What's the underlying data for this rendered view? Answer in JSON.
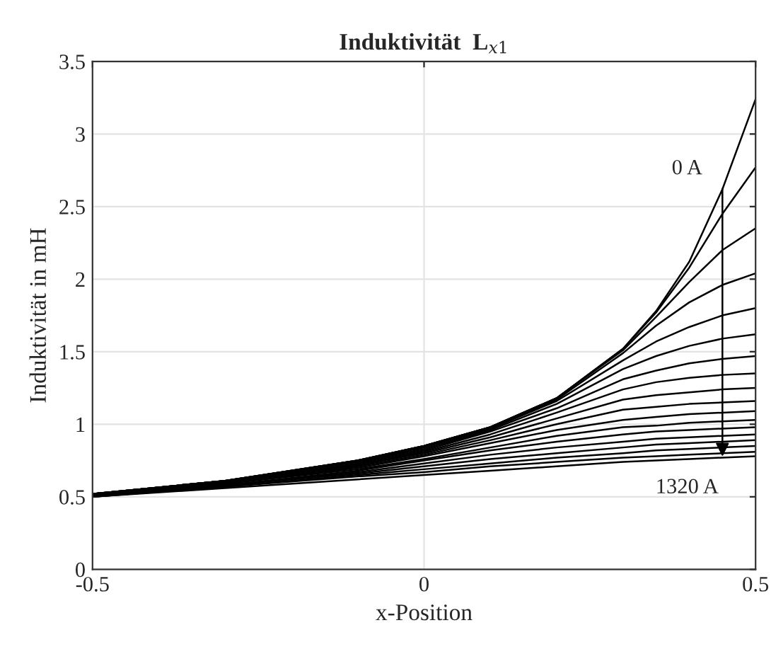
{
  "chart_data": {
    "type": "line",
    "title": "Induktivität  L$_{x1}$",
    "xlabel": "x-Position",
    "ylabel": "Induktivität in mH",
    "x": [
      -0.5,
      -0.3,
      -0.1,
      0,
      0.1,
      0.2,
      0.3,
      0.35,
      0.4,
      0.45,
      0.5
    ],
    "series": [
      {
        "color": "#000000",
        "values": [
          0.52,
          0.61,
          0.75,
          0.85,
          0.98,
          1.18,
          1.52,
          1.78,
          2.12,
          2.62,
          3.24
        ]
      },
      {
        "color": "#000000",
        "values": [
          0.52,
          0.61,
          0.75,
          0.85,
          0.98,
          1.18,
          1.52,
          1.77,
          2.08,
          2.45,
          2.77
        ]
      },
      {
        "color": "#000000",
        "values": [
          0.52,
          0.61,
          0.75,
          0.85,
          0.98,
          1.18,
          1.51,
          1.74,
          1.98,
          2.2,
          2.35
        ]
      },
      {
        "color": "#000000",
        "values": [
          0.52,
          0.61,
          0.75,
          0.85,
          0.98,
          1.17,
          1.49,
          1.68,
          1.84,
          1.96,
          2.04
        ]
      },
      {
        "color": "#000000",
        "values": [
          0.52,
          0.61,
          0.74,
          0.84,
          0.97,
          1.16,
          1.44,
          1.57,
          1.67,
          1.75,
          1.8
        ]
      },
      {
        "color": "#000000",
        "values": [
          0.52,
          0.61,
          0.74,
          0.83,
          0.96,
          1.14,
          1.38,
          1.47,
          1.54,
          1.59,
          1.62
        ]
      },
      {
        "color": "#000000",
        "values": [
          0.52,
          0.6,
          0.73,
          0.82,
          0.95,
          1.11,
          1.31,
          1.37,
          1.42,
          1.45,
          1.47
        ]
      },
      {
        "color": "#000000",
        "values": [
          0.52,
          0.6,
          0.72,
          0.81,
          0.93,
          1.08,
          1.24,
          1.29,
          1.32,
          1.34,
          1.35
        ]
      },
      {
        "color": "#000000",
        "values": [
          0.51,
          0.6,
          0.72,
          0.8,
          0.91,
          1.04,
          1.17,
          1.2,
          1.22,
          1.24,
          1.25
        ]
      },
      {
        "color": "#000000",
        "values": [
          0.51,
          0.59,
          0.71,
          0.79,
          0.89,
          1.0,
          1.1,
          1.12,
          1.14,
          1.15,
          1.16
        ]
      },
      {
        "color": "#000000",
        "values": [
          0.51,
          0.59,
          0.7,
          0.78,
          0.87,
          0.96,
          1.03,
          1.05,
          1.07,
          1.08,
          1.09
        ]
      },
      {
        "color": "#000000",
        "values": [
          0.51,
          0.59,
          0.69,
          0.76,
          0.84,
          0.92,
          0.98,
          0.99,
          1.01,
          1.02,
          1.03
        ]
      },
      {
        "color": "#000000",
        "values": [
          0.51,
          0.58,
          0.68,
          0.75,
          0.82,
          0.88,
          0.93,
          0.95,
          0.96,
          0.97,
          0.98
        ]
      },
      {
        "color": "#000000",
        "values": [
          0.51,
          0.58,
          0.67,
          0.73,
          0.79,
          0.84,
          0.88,
          0.9,
          0.91,
          0.92,
          0.93
        ]
      },
      {
        "color": "#000000",
        "values": [
          0.5,
          0.58,
          0.66,
          0.71,
          0.76,
          0.8,
          0.84,
          0.86,
          0.87,
          0.88,
          0.89
        ]
      },
      {
        "color": "#000000",
        "values": [
          0.5,
          0.57,
          0.65,
          0.69,
          0.73,
          0.77,
          0.8,
          0.82,
          0.83,
          0.84,
          0.85
        ]
      },
      {
        "color": "#000000",
        "values": [
          0.5,
          0.57,
          0.64,
          0.67,
          0.71,
          0.74,
          0.77,
          0.78,
          0.79,
          0.8,
          0.81
        ]
      },
      {
        "color": "#000000",
        "values": [
          0.5,
          0.56,
          0.62,
          0.65,
          0.68,
          0.71,
          0.74,
          0.75,
          0.76,
          0.77,
          0.78
        ]
      }
    ],
    "annotations": [
      {
        "text": "0 A",
        "x": 0.45,
        "y": 2.65
      },
      {
        "text": "1320 A",
        "x": 0.45,
        "y": 0.75
      }
    ],
    "xlim": [
      -0.5,
      0.5
    ],
    "xticks": [
      -0.5,
      0,
      0.5
    ],
    "ylim": [
      0,
      3.5
    ],
    "yticks": [
      0,
      0.5,
      1,
      1.5,
      2,
      2.5,
      3,
      3.5
    ],
    "grid": true,
    "legend": false,
    "marker": "none",
    "line_style": "solid"
  }
}
